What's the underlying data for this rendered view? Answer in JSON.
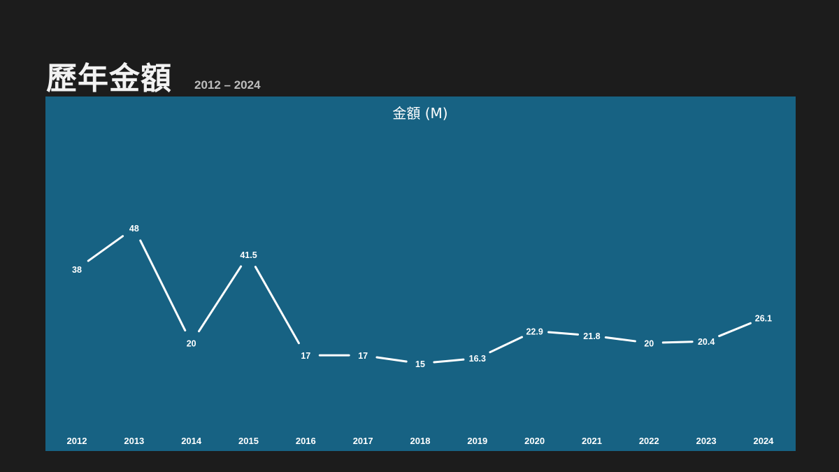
{
  "header": {
    "title": "歷年金額",
    "subtitle": "2012 – 2024"
  },
  "colors": {
    "page_background": "#1c1c1c",
    "panel_background": "#176283",
    "line": "#ffffff",
    "text": "#ffffff"
  },
  "chart_data": {
    "type": "line",
    "title": "金額 (M)",
    "x": [
      "2012",
      "2013",
      "2014",
      "2015",
      "2016",
      "2017",
      "2018",
      "2019",
      "2020",
      "2021",
      "2022",
      "2023",
      "2024"
    ],
    "series": [
      {
        "values": [
          38,
          48,
          20,
          41.5,
          17,
          17,
          15,
          16.3,
          22.9,
          21.8,
          20,
          20.4,
          26.1
        ]
      }
    ],
    "ylim": [
      0,
      70
    ],
    "data_labels": [
      "38",
      "48",
      "20",
      "41.5",
      "17",
      "17",
      "15",
      "16.3",
      "22.9",
      "21.8",
      "20",
      "20.4",
      "26.1"
    ],
    "drop_lines": true,
    "grid": false,
    "legend": "none"
  }
}
